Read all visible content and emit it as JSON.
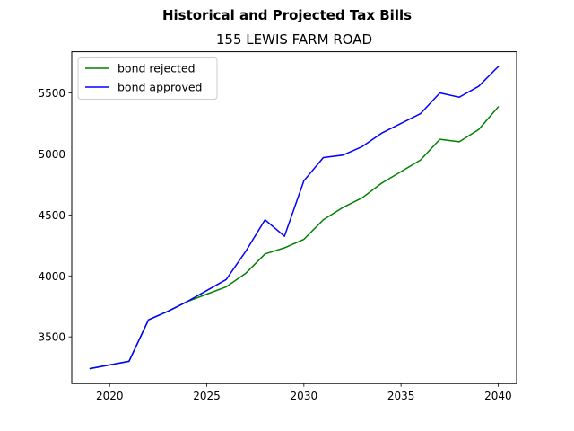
{
  "chart_data": {
    "type": "line",
    "suptitle": "Historical and Projected Tax Bills",
    "title": "155 LEWIS FARM ROAD",
    "xlabel": "",
    "ylabel": "",
    "xlim": [
      2018.05,
      2040.95
    ],
    "ylim": [
      3117,
      5838
    ],
    "xticks": [
      2020,
      2025,
      2030,
      2035,
      2040
    ],
    "yticks": [
      3500,
      4000,
      4500,
      5000,
      5500
    ],
    "grid": false,
    "legend_position": "top-left",
    "x": [
      2019,
      2020,
      2021,
      2022,
      2023,
      2024,
      2025,
      2026,
      2027,
      2028,
      2029,
      2030,
      2031,
      2032,
      2033,
      2034,
      2035,
      2036,
      2037,
      2038,
      2039,
      2040
    ],
    "series": [
      {
        "name": "bond rejected",
        "color": "#008000",
        "values": [
          3240,
          3270,
          3300,
          3640,
          3710,
          3790,
          3850,
          3910,
          4020,
          4180,
          4230,
          4300,
          4460,
          4560,
          4640,
          4760,
          4855,
          4950,
          5120,
          5100,
          5200,
          5385
        ]
      },
      {
        "name": "bond approved",
        "color": "#0000ff",
        "values": [
          3240,
          3270,
          3300,
          3640,
          3710,
          3790,
          3880,
          3970,
          4200,
          4460,
          4325,
          4780,
          4970,
          4990,
          5060,
          5170,
          5250,
          5330,
          5500,
          5465,
          5555,
          5715
        ]
      }
    ]
  }
}
